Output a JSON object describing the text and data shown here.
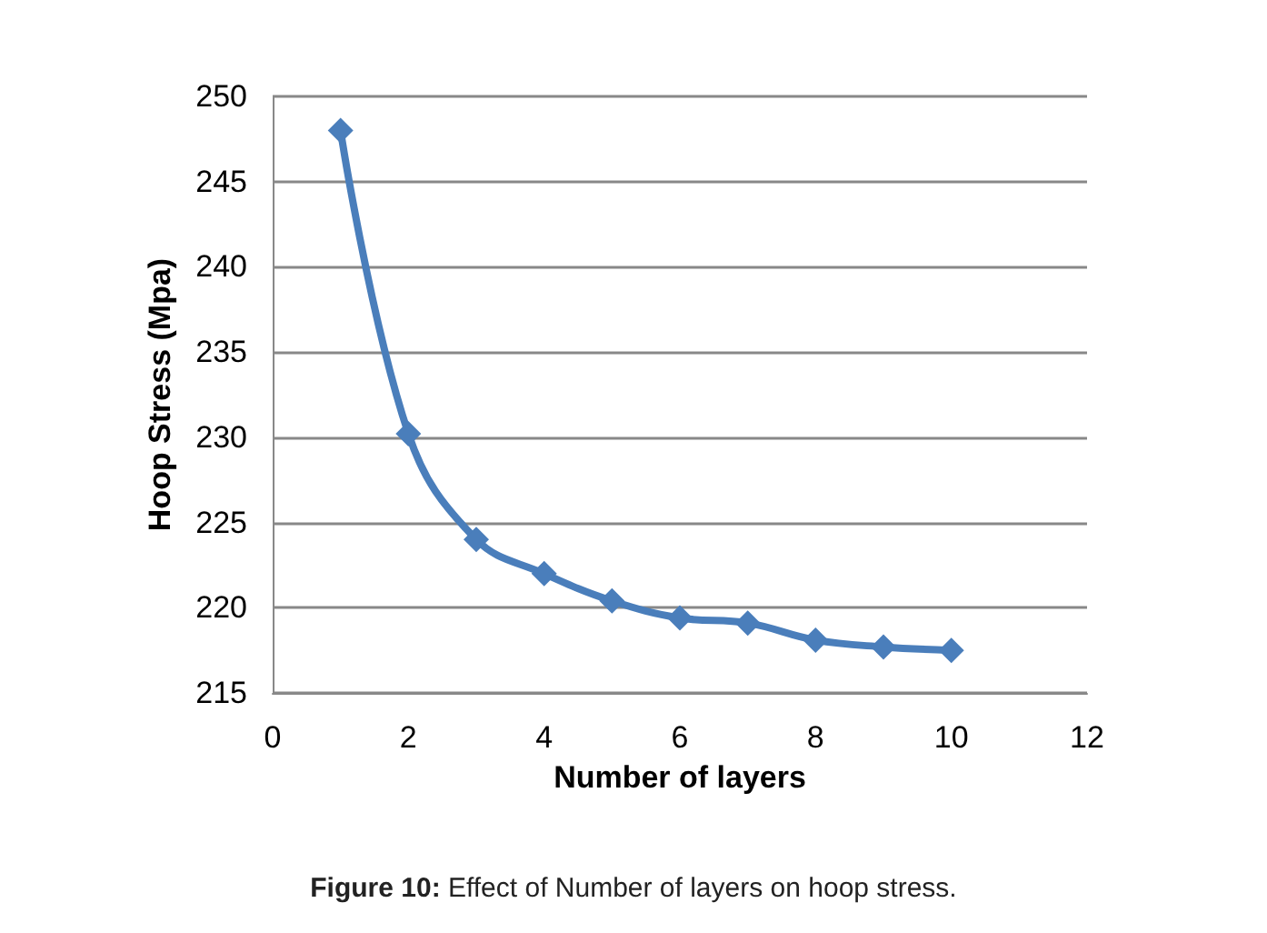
{
  "chart_data": {
    "type": "line",
    "xlabel": "Number of layers",
    "ylabel": "Hoop Stress (Mpa)",
    "x": [
      1,
      2,
      3,
      4,
      5,
      6,
      7,
      8,
      9,
      10
    ],
    "series": [
      {
        "color": "#4a7ebb",
        "values": [
          248.0,
          230.2,
          224.0,
          222.0,
          220.4,
          219.4,
          219.1,
          218.1,
          217.7,
          217.5
        ]
      }
    ],
    "xlim": [
      0,
      12
    ],
    "xticks": [
      0,
      2,
      4,
      6,
      8,
      10,
      12
    ],
    "ylim": [
      215,
      250
    ],
    "yticks": [
      215,
      220,
      225,
      230,
      235,
      240,
      245,
      250
    ],
    "grid": "y",
    "marker": "diamond",
    "line_style": "solid",
    "annotations": [
      "Figure 10: Effect of Number of layers on hoop stress."
    ]
  }
}
